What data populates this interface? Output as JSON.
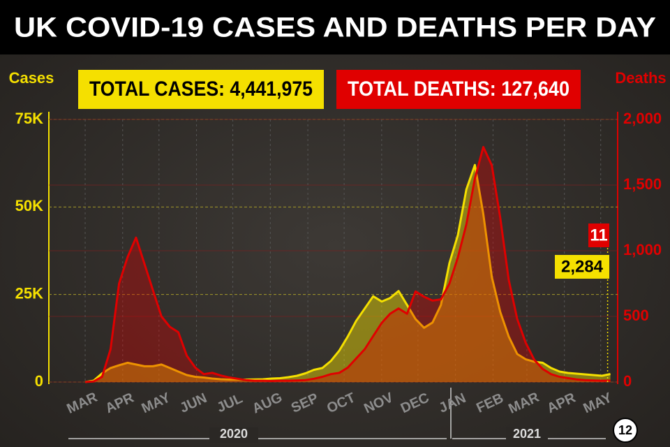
{
  "chart_data": {
    "type": "line",
    "title": "UK COVID-19 CASES AND DEATHS PER DAY",
    "total_cases": "TOTAL CASES: 4,441,975",
    "total_deaths": "TOTAL DEATHS: 127,640",
    "ylabel": "Cases",
    "y2label": "Deaths",
    "annotations": [
      {
        "text": "11",
        "color": "#e00000"
      },
      {
        "text": "2,284",
        "color": "#f5e000"
      }
    ],
    "years": [
      "2020",
      "2021"
    ],
    "page": "12",
    "xlim": [
      -30,
      440
    ],
    "xticks": [
      {
        "value": 0,
        "label": "MAR"
      },
      {
        "value": 31,
        "label": "APR"
      },
      {
        "value": 61,
        "label": "MAY"
      },
      {
        "value": 92,
        "label": "JUN"
      },
      {
        "value": 122,
        "label": "JUL"
      },
      {
        "value": 153,
        "label": "AUG"
      },
      {
        "value": 184,
        "label": "SEP"
      },
      {
        "value": 214,
        "label": "OCT"
      },
      {
        "value": 245,
        "label": "NOV"
      },
      {
        "value": 275,
        "label": "DEC"
      },
      {
        "value": 306,
        "label": "JAN"
      },
      {
        "value": 337,
        "label": "FEB"
      },
      {
        "value": 365,
        "label": "MAR"
      },
      {
        "value": 396,
        "label": "APR"
      },
      {
        "value": 426,
        "label": "MAY"
      }
    ],
    "ylim": [
      0,
      75000
    ],
    "yticks": [
      0,
      {
        "value": 25000,
        "label": "25K"
      },
      {
        "value": 50000,
        "label": "50K"
      },
      {
        "value": 75000,
        "label": "75K"
      }
    ],
    "y2lim": [
      0,
      2000
    ],
    "y2ticks": [
      0,
      500,
      {
        "value": 1000,
        "label": "1,000"
      },
      {
        "value": 1500,
        "label": "1,500"
      },
      {
        "value": 2000,
        "label": "2,000"
      }
    ],
    "grid": true,
    "x": [
      0,
      7,
      14,
      21,
      28,
      35,
      42,
      49,
      56,
      63,
      70,
      77,
      84,
      91,
      98,
      105,
      112,
      119,
      126,
      133,
      140,
      147,
      154,
      161,
      168,
      175,
      182,
      189,
      196,
      203,
      210,
      217,
      224,
      231,
      238,
      245,
      252,
      259,
      266,
      273,
      280,
      287,
      294,
      301,
      308,
      315,
      322,
      329,
      336,
      343,
      350,
      357,
      364,
      371,
      378,
      385,
      392,
      399,
      406,
      413,
      420,
      427,
      434
    ],
    "series": [
      {
        "name": "Cases",
        "color": "#f5e000",
        "axis": "y",
        "values": [
          0,
          400,
          2500,
          4000,
          4800,
          5500,
          5000,
          4500,
          4500,
          5000,
          4000,
          3000,
          2000,
          1500,
          1300,
          1000,
          800,
          700,
          700,
          700,
          750,
          800,
          1000,
          1100,
          1400,
          1800,
          2500,
          3500,
          4000,
          6000,
          9000,
          13000,
          17500,
          21000,
          24500,
          23000,
          24000,
          26000,
          22000,
          18000,
          15500,
          17000,
          22000,
          34000,
          42000,
          55000,
          62000,
          48000,
          30000,
          20000,
          13000,
          8000,
          6500,
          5800,
          5500,
          4000,
          3000,
          2600,
          2400,
          2200,
          2000,
          1800,
          2284
        ]
      },
      {
        "name": "Deaths",
        "color": "#e00000",
        "axis": "y2",
        "values": [
          0,
          5,
          40,
          250,
          750,
          950,
          1100,
          900,
          700,
          500,
          420,
          380,
          200,
          110,
          60,
          70,
          50,
          35,
          25,
          15,
          10,
          10,
          8,
          10,
          10,
          12,
          15,
          25,
          40,
          60,
          70,
          110,
          180,
          250,
          350,
          450,
          520,
          560,
          520,
          690,
          650,
          620,
          630,
          750,
          950,
          1200,
          1550,
          1790,
          1650,
          1250,
          780,
          480,
          300,
          170,
          100,
          60,
          40,
          30,
          20,
          15,
          12,
          10,
          11
        ]
      }
    ]
  }
}
